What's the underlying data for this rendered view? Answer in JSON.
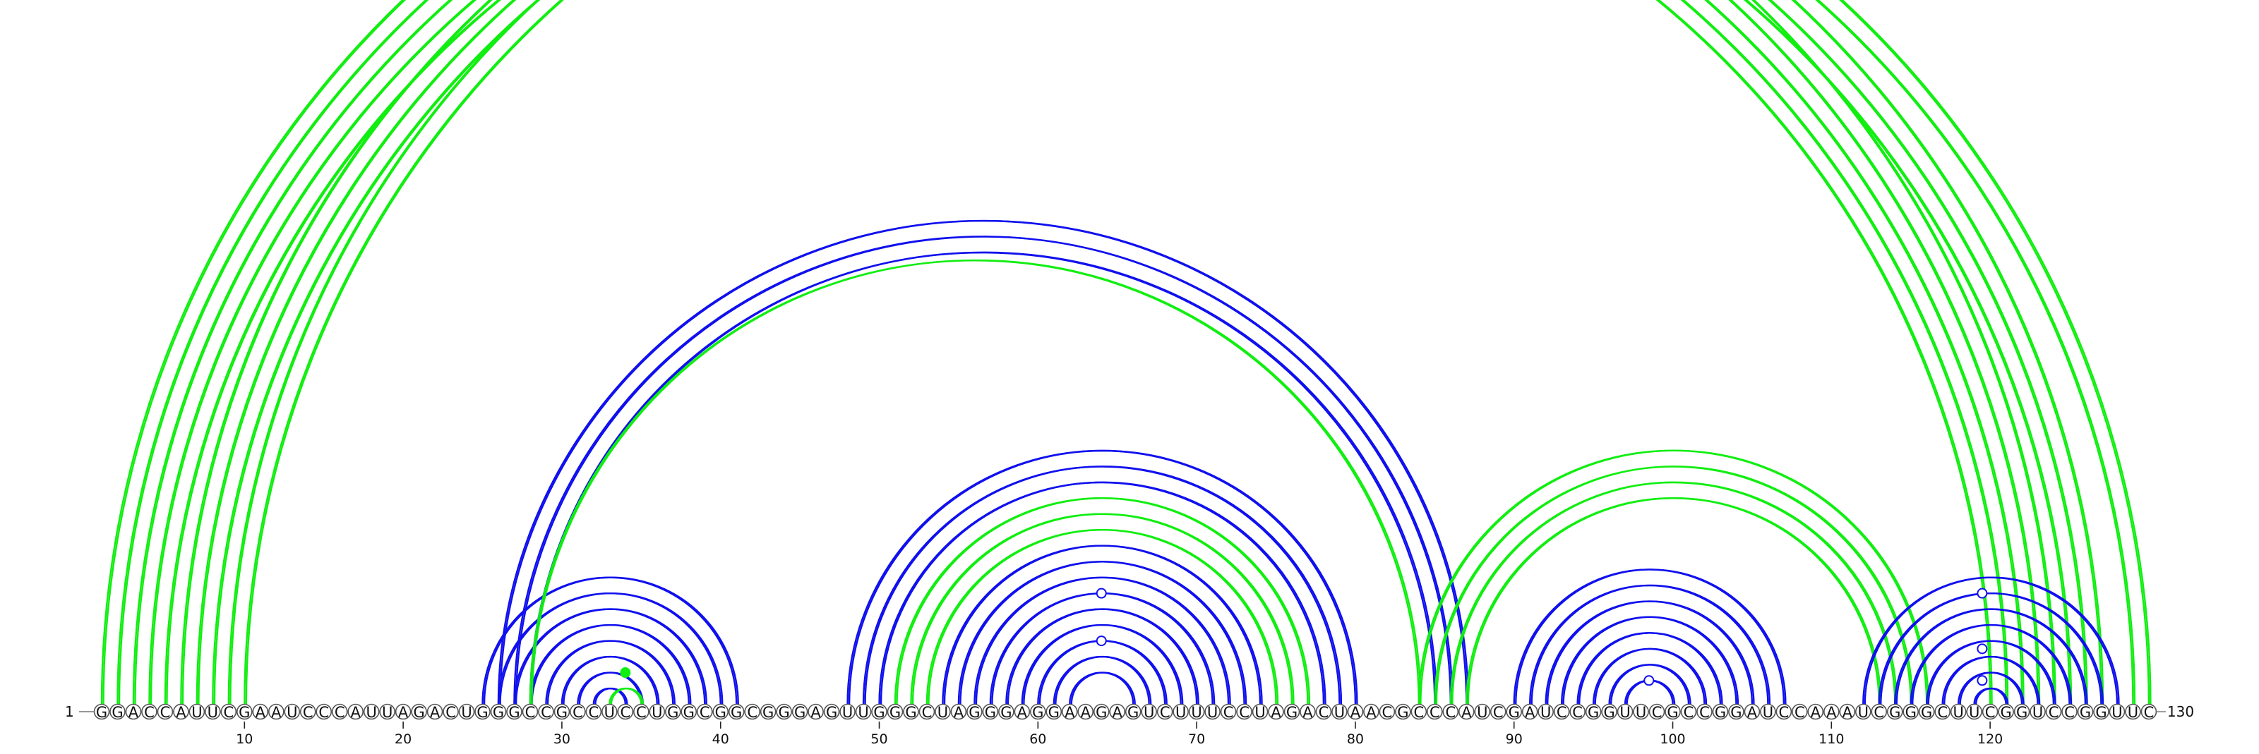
{
  "sequence": "GGACCAUUCGAAUCCCAUUAGACUGGGCCGCCUCCUGGCGGCGGGAGUUGGGCUAGGGAGGAAGAGUCUUUCCUAGACUAACGCCCAUCGAUCCGGUUCGCCGGAUCCAAAUCGGGCUUCGGUCCGGUUC",
  "start_label": "1",
  "end_label": "130",
  "ticks": [
    10,
    20,
    30,
    40,
    50,
    60,
    70,
    80,
    90,
    100,
    110,
    120
  ],
  "colors": {
    "blue": "#1010ee",
    "green": "#11ee11"
  },
  "arc_groups": [
    {
      "name": "green-outer",
      "color": "green",
      "pairs": [
        [
          1,
          124
        ],
        [
          2,
          123
        ],
        [
          3,
          122
        ],
        [
          4,
          121
        ],
        [
          5,
          120
        ],
        [
          6,
          127
        ],
        [
          7,
          126
        ],
        [
          8,
          125
        ],
        [
          9,
          130
        ],
        [
          10,
          129
        ]
      ],
      "markers": [
        {
          "x": 65.5,
          "y": 72,
          "filled": false
        }
      ]
    },
    {
      "name": "blue-loop-30s",
      "color": "blue",
      "pairs": [
        [
          25,
          41
        ],
        [
          26,
          40
        ],
        [
          27,
          39
        ],
        [
          28,
          38
        ],
        [
          29,
          37
        ],
        [
          30,
          36
        ],
        [
          31,
          35
        ],
        [
          32,
          34
        ]
      ]
    },
    {
      "name": "green-loop-30s",
      "color": "green",
      "pairs": [
        [
          33,
          35
        ]
      ],
      "markers": [
        {
          "x": 34,
          "y": 2,
          "filled": true
        }
      ]
    },
    {
      "name": "blue-long-27",
      "color": "blue",
      "pairs": [
        [
          26,
          87
        ],
        [
          27,
          86
        ],
        [
          28,
          85
        ]
      ]
    },
    {
      "name": "green-long-28",
      "color": "green",
      "pairs": [
        [
          28,
          84
        ]
      ]
    },
    {
      "name": "blue-loop-60s",
      "color": "blue",
      "pairs": [
        [
          48,
          80
        ],
        [
          49,
          79
        ],
        [
          50,
          78
        ],
        [
          54,
          74
        ],
        [
          55,
          73
        ],
        [
          56,
          72
        ],
        [
          57,
          71
        ],
        [
          58,
          70
        ],
        [
          59,
          69
        ],
        [
          60,
          68
        ],
        [
          61,
          67
        ],
        [
          62,
          66
        ]
      ],
      "markers": [
        {
          "x": 64,
          "y": 7,
          "filled": false
        },
        {
          "x": 64,
          "y": 4,
          "filled": false
        }
      ]
    },
    {
      "name": "green-loop-60s",
      "color": "green",
      "pairs": [
        [
          51,
          77
        ],
        [
          52,
          76
        ],
        [
          53,
          75
        ]
      ]
    },
    {
      "name": "green-link-85",
      "color": "green",
      "pairs": [
        [
          84,
          116
        ],
        [
          85,
          115
        ],
        [
          86,
          114
        ],
        [
          87,
          113
        ]
      ]
    },
    {
      "name": "blue-loop-100",
      "color": "blue",
      "pairs": [
        [
          90,
          107
        ],
        [
          91,
          106
        ],
        [
          92,
          105
        ],
        [
          93,
          104
        ],
        [
          94,
          103
        ],
        [
          95,
          102
        ],
        [
          96,
          101
        ],
        [
          97,
          100
        ]
      ],
      "markers": [
        {
          "x": 98.5,
          "y": 1.5,
          "filled": false
        }
      ]
    },
    {
      "name": "blue-loop-120",
      "color": "blue",
      "pairs": [
        [
          112,
          128
        ],
        [
          113,
          127
        ],
        [
          114,
          126
        ],
        [
          115,
          125
        ],
        [
          116,
          124
        ],
        [
          117,
          123
        ],
        [
          118,
          122
        ],
        [
          119,
          121
        ]
      ],
      "markers": [
        {
          "x": 119.5,
          "y": 7,
          "filled": false
        },
        {
          "x": 119.5,
          "y": 3.5,
          "filled": false
        },
        {
          "x": 119.5,
          "y": 1.5,
          "filled": false
        }
      ]
    }
  ]
}
